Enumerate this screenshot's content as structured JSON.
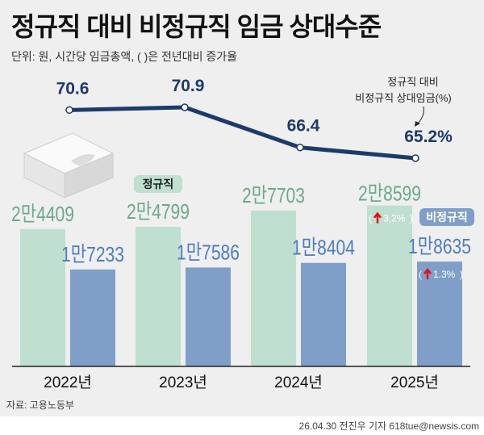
{
  "title": "정규직 대비 비정규직 임금 상대수준",
  "subtitle": "단위: 원, 시간당 임금총액, ( )은 전년대비 증가율",
  "source": "자료: 고용노동부",
  "credit": "26.04.30 전진우 기자 618tue@newsis.com",
  "chart_data": {
    "type": "bar",
    "categories": [
      "2022년",
      "2023년",
      "2024년",
      "2025년"
    ],
    "series": [
      {
        "name": "정규직",
        "values": [
          24409,
          24799,
          27703,
          28599
        ],
        "labels": [
          "2만4409",
          "2만4799",
          "2만7703",
          "2만8599"
        ],
        "color": "#bfdfd0",
        "label_color": "#6aaa8a"
      },
      {
        "name": "비정규직",
        "values": [
          17233,
          17586,
          18404,
          18635
        ],
        "labels": [
          "1만7233",
          "1만7586",
          "1만8404",
          "1만8635"
        ],
        "color": "#7f9fc8",
        "label_color": "#4f7cc0"
      }
    ],
    "growth_annotations": [
      {
        "series": "정규직",
        "category": "2025년",
        "text": "3.2%"
      },
      {
        "series": "비정규직",
        "category": "2025년",
        "text": "1.3%"
      }
    ],
    "line": {
      "name": "정규직 대비 비정규직 상대임금(%)",
      "name_lines": [
        "정규직 대비",
        "비정규직 상대임금(%)"
      ],
      "values": [
        70.6,
        70.9,
        66.4,
        65.2
      ],
      "labels": [
        "70.6",
        "70.9",
        "66.4",
        "65.2%"
      ],
      "color": "#1c3a6b"
    },
    "legend_badges": [
      "정규직",
      "비정규직"
    ],
    "grid": false
  }
}
